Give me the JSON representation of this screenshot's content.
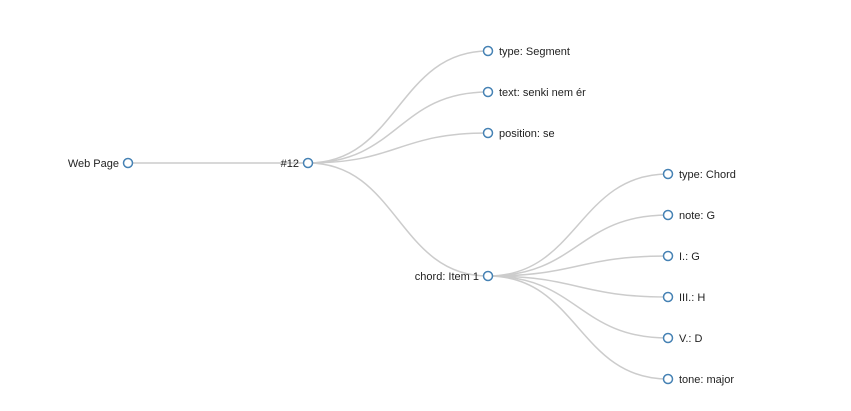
{
  "tree": {
    "name": "Web Page",
    "children": [
      {
        "name": "#12",
        "children": [
          {
            "name": "type: Segment"
          },
          {
            "name": "text: senki nem ér"
          },
          {
            "name": "position: se"
          },
          {
            "name": "chord: Item 1",
            "children": [
              {
                "name": "type: Chord"
              },
              {
                "name": "note: G"
              },
              {
                "name": "I.: G"
              },
              {
                "name": "III.: H"
              },
              {
                "name": "V.: D"
              },
              {
                "name": "tone: major"
              }
            ]
          }
        ]
      }
    ]
  },
  "colors": {
    "link": "#cccccc",
    "node_stroke": "#4682b4",
    "node_fill": "#ffffff",
    "label": "#222222"
  }
}
